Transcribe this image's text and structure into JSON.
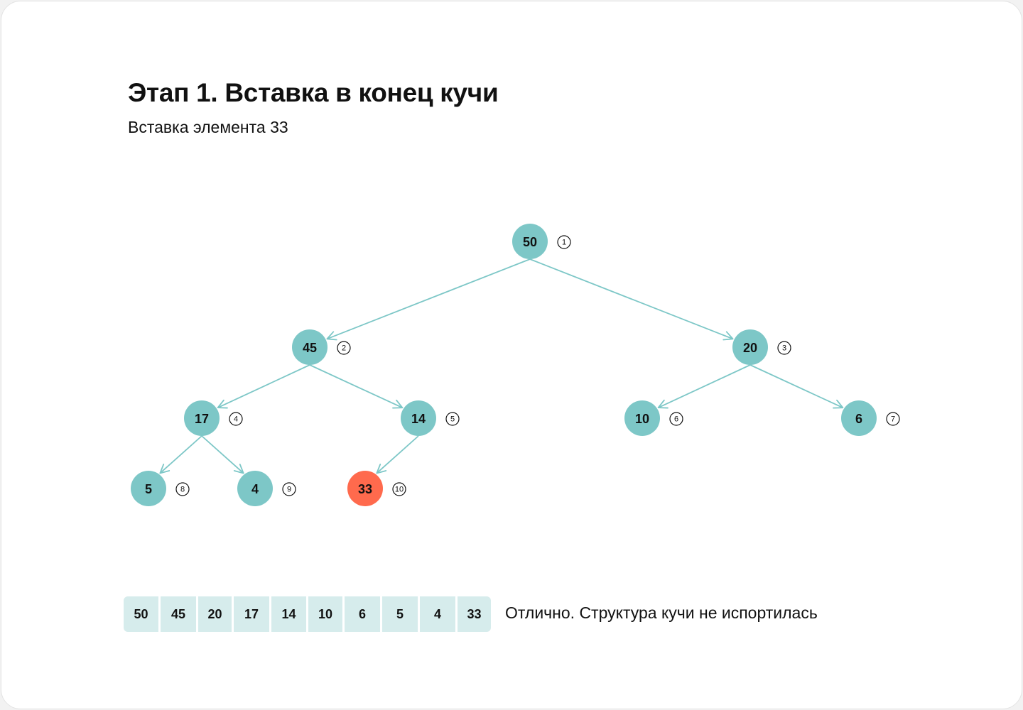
{
  "title": "Этап 1. Вставка в конец кучи",
  "subtitle": "Вставка элемента 33",
  "colors": {
    "node": "#7dc7c7",
    "highlight": "#ff6a4d",
    "edge": "#7dc7c7",
    "cell": "#d6ecec"
  },
  "tree": {
    "nodes": [
      {
        "value": "50",
        "index": "1",
        "highlight": false
      },
      {
        "value": "45",
        "index": "2",
        "highlight": false
      },
      {
        "value": "20",
        "index": "3",
        "highlight": false
      },
      {
        "value": "17",
        "index": "4",
        "highlight": false
      },
      {
        "value": "14",
        "index": "5",
        "highlight": false
      },
      {
        "value": "10",
        "index": "6",
        "highlight": false
      },
      {
        "value": "6",
        "index": "7",
        "highlight": false
      },
      {
        "value": "5",
        "index": "8",
        "highlight": false
      },
      {
        "value": "4",
        "index": "9",
        "highlight": false
      },
      {
        "value": "33",
        "index": "10",
        "highlight": true
      }
    ],
    "edges": [
      [
        0,
        1
      ],
      [
        0,
        2
      ],
      [
        1,
        3
      ],
      [
        1,
        4
      ],
      [
        2,
        5
      ],
      [
        2,
        6
      ],
      [
        3,
        7
      ],
      [
        3,
        8
      ],
      [
        4,
        9
      ]
    ]
  },
  "array": [
    "50",
    "45",
    "20",
    "17",
    "14",
    "10",
    "6",
    "5",
    "4",
    "33"
  ],
  "status_text": "Отлично. Структура кучи не испортилась"
}
